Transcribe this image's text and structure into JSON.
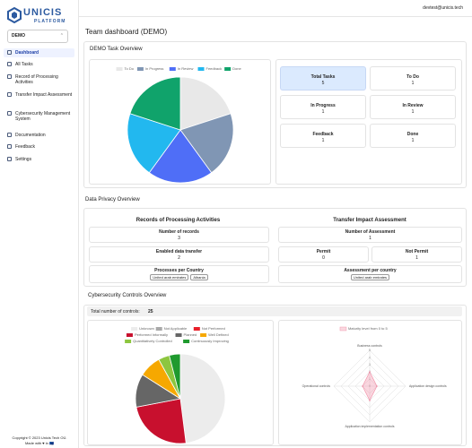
{
  "topbar": {
    "user": "devtest@unicis.tech"
  },
  "sidebar": {
    "logo_top": "UNICIS",
    "logo_bottom": "PLATFORM",
    "team": "DEMO",
    "nav": [
      "Dashboard",
      "All Tasks",
      "Record of Processing Activities",
      "Transfer Impact Assessment",
      "Cybersecurity Management System",
      "Documentation",
      "Feedback",
      "Settings"
    ],
    "footer": "Copyright © 2023 Unicis Tech OÜ.",
    "footer2": "Made with ♥ in 🇪🇺"
  },
  "page_title": "Team dashboard (DEMO)",
  "task_overview": {
    "title": "DEMO Task Overview",
    "stats": [
      {
        "label": "Total Tasks",
        "value": 5
      },
      {
        "label": "To Do",
        "value": 1
      },
      {
        "label": "In Progress",
        "value": 1
      },
      {
        "label": "In Review",
        "value": 1
      },
      {
        "label": "Feedback",
        "value": 1
      },
      {
        "label": "Done",
        "value": 1
      }
    ]
  },
  "privacy": {
    "title": "Data Privacy Overview",
    "ropa": {
      "title": "Records of Processing Activities",
      "records_label": "Number of records",
      "records": 3,
      "transfer_label": "Enabled data transfer",
      "transfer": 2,
      "country_label": "Processes per Country",
      "countries": [
        "United arab emirates",
        "Albania"
      ]
    },
    "tia": {
      "title": "Transfer Impact Assessment",
      "assess_label": "Number of Assessment",
      "assess": 1,
      "permit_label": "Permit",
      "permit": 0,
      "not_permit_label": "Not Permit",
      "not_permit": 1,
      "country_label": "Assessment per country",
      "countries": [
        "United arab emirates"
      ]
    }
  },
  "cyber": {
    "title": "Cybersecurity Controls Overview",
    "total_label": "Total number of controls:",
    "total": 25
  },
  "chart_data": [
    {
      "type": "pie",
      "categories": [
        "To Do",
        "In Progress",
        "In Review",
        "Feedback",
        "Done"
      ],
      "values": [
        1,
        1,
        1,
        1,
        1
      ],
      "colors": [
        "#e8e8e8",
        "#8096b4",
        "#4f6ef7",
        "#22b8ef",
        "#10a36b"
      ]
    },
    {
      "type": "pie",
      "categories": [
        "Unknown",
        "Not Applicable",
        "Not Performed",
        "Performed Informally",
        "Planned",
        "Well Defined",
        "Quantitatively Controlled",
        "Continuously Improving"
      ],
      "values": [
        12,
        0,
        0,
        6,
        3,
        2,
        1,
        1
      ],
      "colors": [
        "#ececec",
        "#a9a9a9",
        "#e8202a",
        "#c8102e",
        "#666666",
        "#f6a800",
        "#8dc63f",
        "#1f9a2e"
      ]
    },
    {
      "type": "radar",
      "categories": [
        "Business controls",
        "Application design controls",
        "Application implementation controls",
        "Operational controls"
      ],
      "series": [
        {
          "name": "Maturity level from 0 to 5",
          "color": "#f08aa3",
          "values": [
            2,
            1,
            2,
            1
          ]
        }
      ],
      "rlim": [
        0,
        5
      ],
      "rticks": [
        0,
        1,
        2,
        3,
        4,
        5
      ]
    }
  ]
}
